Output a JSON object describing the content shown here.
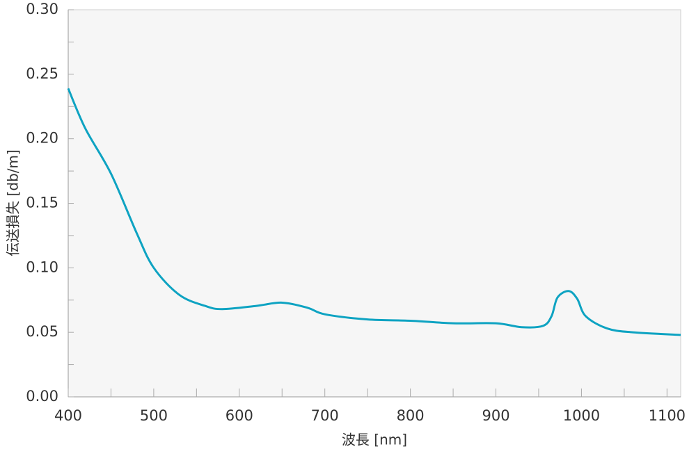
{
  "chart_data": {
    "type": "line",
    "x_label": "波長 [nm]",
    "y_label": "伝送損失 [db/m]",
    "xlim": [
      400,
      1116
    ],
    "ylim": [
      0,
      0.3
    ],
    "xticks": [
      400,
      500,
      600,
      700,
      800,
      900,
      1000,
      1100
    ],
    "xminorticks": [
      450,
      550,
      650,
      750,
      850,
      950,
      1050
    ],
    "yticks": [
      {
        "value": 0,
        "label": "0.00"
      },
      {
        "value": 0.05,
        "label": "0.05"
      },
      {
        "value": 0.1,
        "label": "0.10"
      },
      {
        "value": 0.15,
        "label": "0.15"
      },
      {
        "value": 0.2,
        "label": "0.20"
      },
      {
        "value": 0.25,
        "label": "0.25"
      },
      {
        "value": 0.3,
        "label": "0.30"
      }
    ],
    "yminorticks": [
      0.025,
      0.075,
      0.125,
      0.175,
      0.225,
      0.275
    ],
    "series": [
      {
        "color": "#0ea3c2",
        "x": [
          400,
          420,
          450,
          480,
          500,
          530,
          560,
          580,
          620,
          650,
          680,
          700,
          750,
          800,
          850,
          900,
          930,
          955,
          965,
          972,
          985,
          995,
          1005,
          1030,
          1060,
          1116
        ],
        "values": [
          0.239,
          0.208,
          0.173,
          0.127,
          0.1,
          0.079,
          0.0705,
          0.068,
          0.0705,
          0.073,
          0.069,
          0.064,
          0.06,
          0.059,
          0.057,
          0.057,
          0.054,
          0.055,
          0.0625,
          0.077,
          0.082,
          0.076,
          0.0625,
          0.053,
          0.05,
          0.048
        ]
      }
    ]
  }
}
